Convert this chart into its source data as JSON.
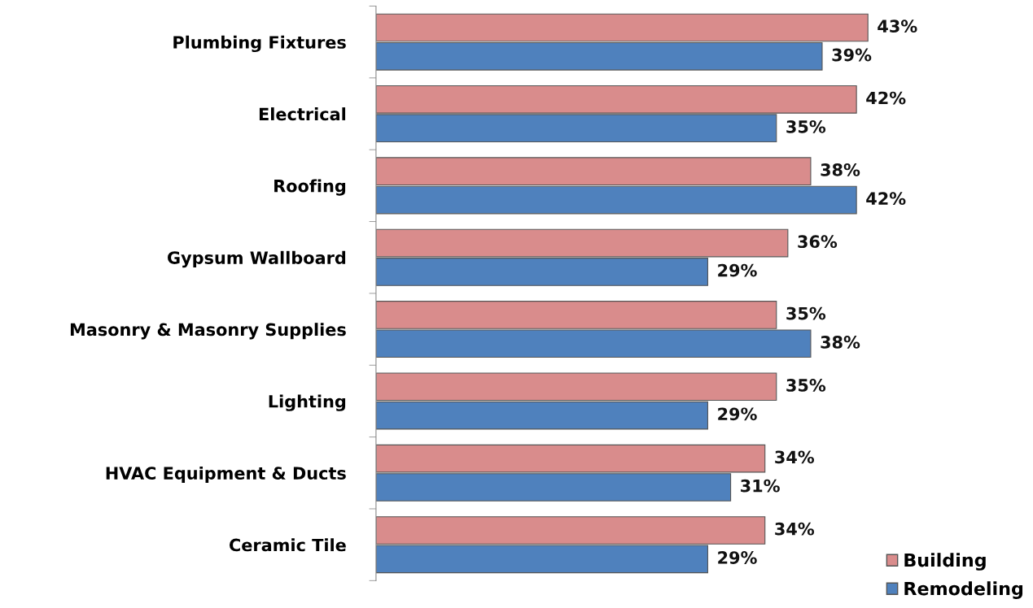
{
  "chart_data": {
    "type": "bar",
    "orientation": "horizontal",
    "categories": [
      "Plumbing Fixtures",
      "Electrical",
      "Roofing",
      "Gypsum Wallboard",
      "Masonry & Masonry Supplies",
      "Lighting",
      "HVAC Equipment & Ducts",
      "Ceramic Tile"
    ],
    "series": [
      {
        "name": "Building",
        "color": "#d98c8c",
        "values": [
          43,
          42,
          38,
          36,
          35,
          35,
          34,
          34
        ],
        "value_labels": [
          "43%",
          "42%",
          "38%",
          "36%",
          "35%",
          "35%",
          "34%",
          "34%"
        ]
      },
      {
        "name": "Remodeling",
        "color": "#4f81bd",
        "values": [
          39,
          35,
          42,
          29,
          38,
          29,
          31,
          29
        ],
        "value_labels": [
          "39%",
          "35%",
          "42%",
          "29%",
          "38%",
          "29%",
          "31%",
          "29%"
        ]
      }
    ],
    "tick_labels": "y",
    "grid": false,
    "legend": "bottom right"
  }
}
